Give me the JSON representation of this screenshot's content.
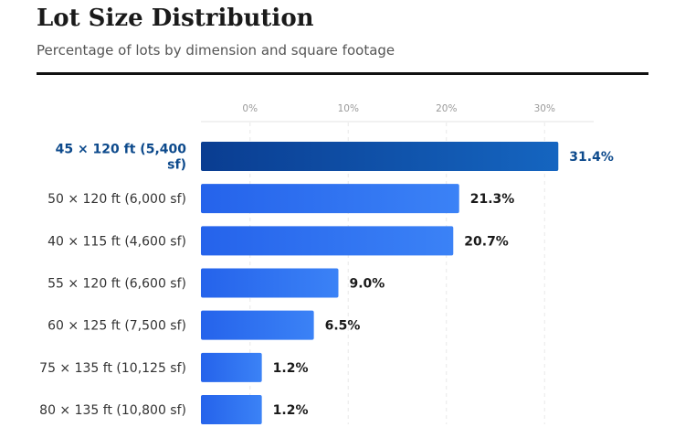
{
  "header": {
    "title": "Lot Size Distribution",
    "subtitle": "Percentage of lots by dimension and square footage"
  },
  "colors": {
    "bar_start": "#2563eb",
    "bar_end": "#3b82f6",
    "highlight_start": "#0a3d91",
    "highlight_end": "#1565c0",
    "highlight_text": "#0d4a8c"
  },
  "chart_data": {
    "type": "bar",
    "orientation": "horizontal",
    "title": "Lot Size Distribution",
    "subtitle": "Percentage of lots by dimension and square footage",
    "xlabel": "",
    "ylabel": "",
    "xlim": [
      -5,
      35
    ],
    "ticks": [
      0,
      10,
      20,
      30
    ],
    "tick_labels": [
      "0%",
      "10%",
      "20%",
      "30%"
    ],
    "grid": true,
    "highlight_index": 0,
    "categories": [
      "45 × 120 ft (5,400 sf)",
      "50 × 120 ft (6,000 sf)",
      "40 × 115 ft (4,600 sf)",
      "55 × 120 ft (6,600 sf)",
      "60 × 125 ft (7,500 sf)",
      "75 × 135 ft (10,125 sf)",
      "80 × 135 ft (10,800 sf)"
    ],
    "category_label_lines": [
      [
        "45 × 120 ft (5,400",
        "sf)"
      ],
      [
        "50 × 120 ft (6,000 sf)"
      ],
      [
        "40 × 115 ft (4,600 sf)"
      ],
      [
        "55 × 120 ft (6,600 sf)"
      ],
      [
        "60 × 125 ft (7,500 sf)"
      ],
      [
        "75 × 135 ft (10,125 sf)"
      ],
      [
        "80 × 135 ft (10,800 sf)"
      ]
    ],
    "values": [
      31.4,
      21.3,
      20.7,
      9.0,
      6.5,
      1.2,
      1.2
    ],
    "value_labels": [
      "31.4%",
      "21.3%",
      "20.7%",
      "9.0%",
      "6.5%",
      "1.2%",
      "1.2%"
    ]
  }
}
